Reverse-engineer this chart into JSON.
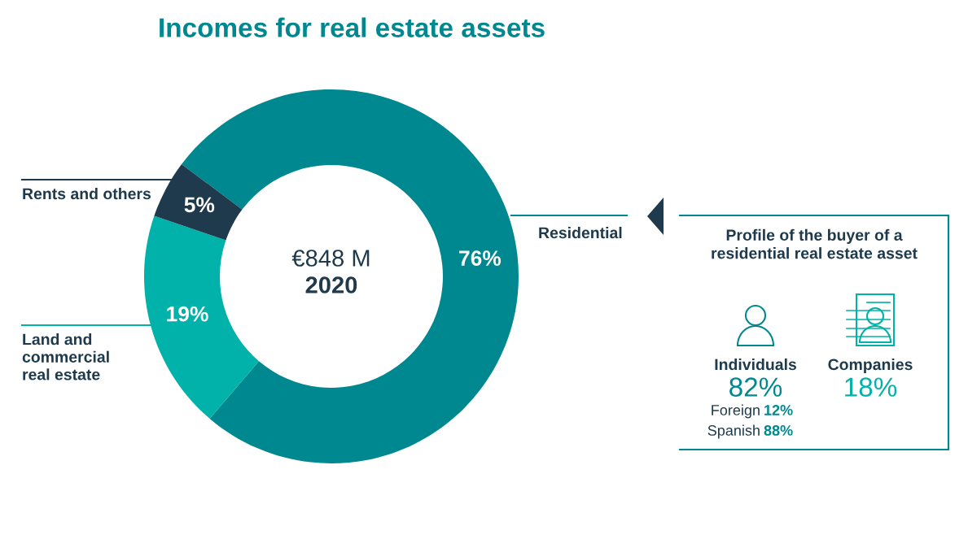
{
  "chart_data": [
    {
      "type": "donut",
      "title": "Incomes for real estate assets",
      "categories": [
        "Residential",
        "Land and\ncommercial\nreal estate",
        "Rents and others"
      ],
      "values": [
        76,
        19,
        5
      ],
      "colors": [
        "#008891",
        "#00b2a9",
        "#1e3a4c"
      ],
      "value_labels": [
        "76%",
        "19%",
        "5%"
      ],
      "annotations": [
        "€848 M",
        "2020"
      ]
    },
    {
      "type": "other",
      "title": "Profile of the buyer of a\nresidential real estate asset",
      "annotations": [
        "Individuals",
        "82%",
        "Foreign",
        "12%",
        "Spanish",
        "88%",
        "Companies",
        "18%"
      ]
    }
  ]
}
